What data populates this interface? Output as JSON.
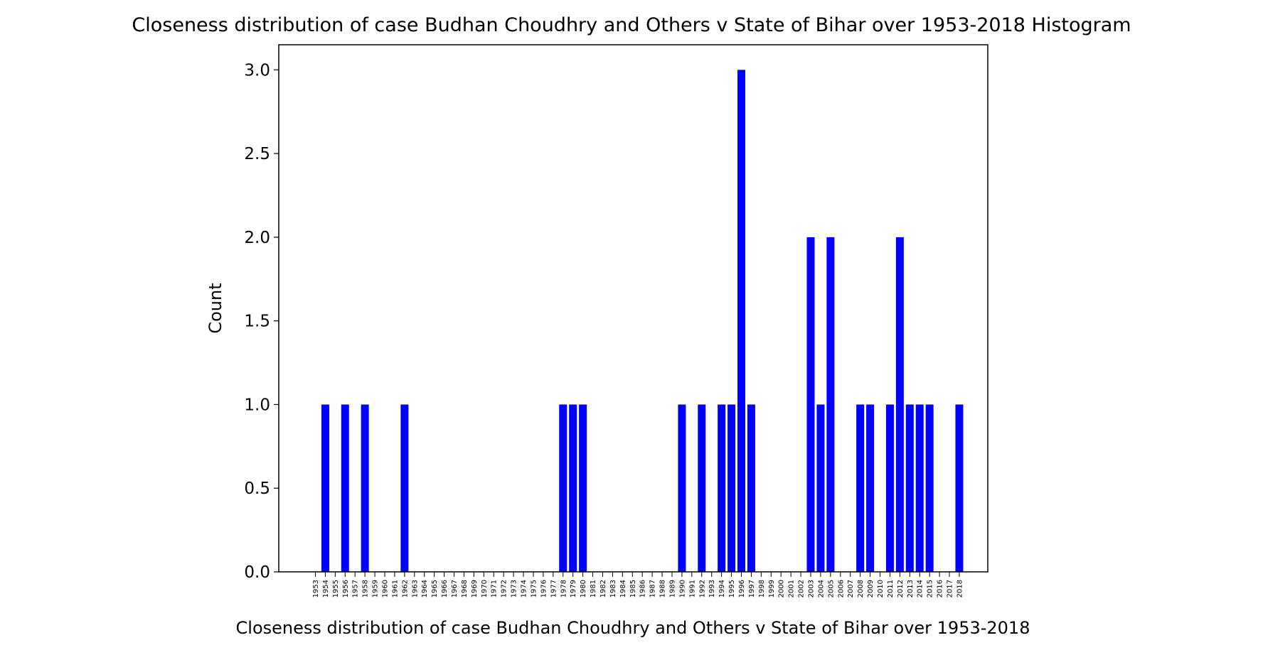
{
  "chart_data": {
    "type": "bar",
    "title": "Closeness distribution of case Budhan Choudhry and Others v State of Bihar over 1953-2018 Histogram",
    "xlabel": "Closeness distribution of case Budhan Choudhry and Others v State of Bihar over 1953-2018",
    "ylabel": "Count",
    "ylim": [
      0,
      3.15
    ],
    "yticks": [
      "0.0",
      "0.5",
      "1.0",
      "1.5",
      "2.0",
      "2.5",
      "3.0"
    ],
    "bar_color": "#0000ff",
    "grid": false,
    "categories": [
      "1953",
      "1954",
      "1955",
      "1956",
      "1957",
      "1958",
      "1959",
      "1960",
      "1961",
      "1962",
      "1963",
      "1964",
      "1965",
      "1966",
      "1967",
      "1968",
      "1969",
      "1970",
      "1971",
      "1972",
      "1973",
      "1974",
      "1975",
      "1976",
      "1977",
      "1978",
      "1979",
      "1980",
      "1981",
      "1982",
      "1983",
      "1984",
      "1985",
      "1986",
      "1987",
      "1988",
      "1989",
      "1990",
      "1991",
      "1992",
      "1993",
      "1994",
      "1995",
      "1996",
      "1997",
      "1998",
      "1999",
      "2000",
      "2001",
      "2002",
      "2003",
      "2004",
      "2005",
      "2006",
      "2007",
      "2008",
      "2009",
      "2010",
      "2011",
      "2012",
      "2013",
      "2014",
      "2015",
      "2016",
      "2017",
      "2018"
    ],
    "values": [
      0,
      1,
      0,
      1,
      0,
      1,
      0,
      0,
      0,
      1,
      0,
      0,
      0,
      0,
      0,
      0,
      0,
      0,
      0,
      0,
      0,
      0,
      0,
      0,
      0,
      1,
      1,
      1,
      0,
      0,
      0,
      0,
      0,
      0,
      0,
      0,
      0,
      1,
      0,
      1,
      0,
      1,
      1,
      3,
      1,
      0,
      0,
      0,
      0,
      0,
      2,
      1,
      2,
      0,
      0,
      1,
      1,
      0,
      1,
      2,
      1,
      1,
      1,
      0,
      0,
      1
    ]
  }
}
